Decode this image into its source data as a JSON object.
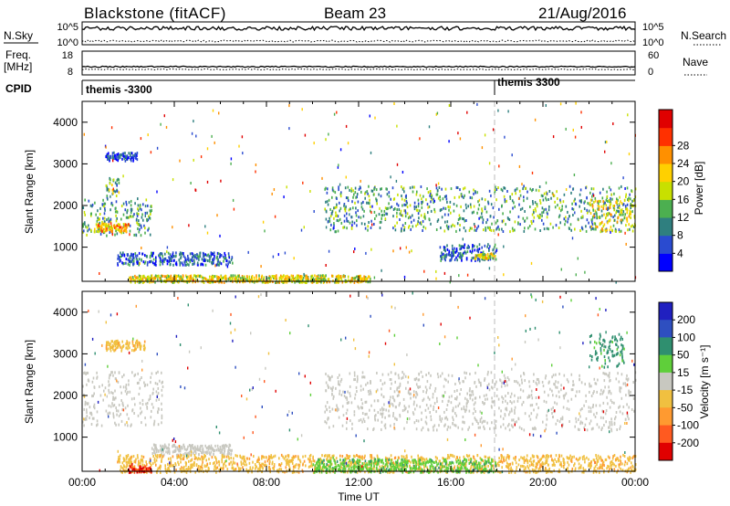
{
  "header": {
    "station": "Blackstone (fitACF)",
    "beam": "Beam 23",
    "date": "21/Aug/2016"
  },
  "status_panels": {
    "nsky_label": "N.Sky",
    "nsky_ticks": [
      "10^5",
      "10^0"
    ],
    "nsearch_label": "N.Search",
    "nsearch_ticks": [
      "10^5",
      "10^0"
    ],
    "freq_label": "Freq.",
    "freq_unit": "[MHz]",
    "freq_ticks": [
      "18",
      "8"
    ],
    "nave_label": "Nave",
    "nave_ticks": [
      "60",
      "0"
    ],
    "cpid_label": "CPID",
    "cpid_segments": [
      {
        "label": "themis -3300",
        "start_hour": 0
      },
      {
        "label": "themis 3300",
        "start_hour": 18
      }
    ]
  },
  "chart_data": [
    {
      "type": "heatmap",
      "name": "power",
      "ylabel": "Slant Range [km]",
      "xlabel": "",
      "ylim": [
        180,
        4500
      ],
      "yticks": [
        "1000",
        "2000",
        "3000",
        "4000"
      ],
      "xticks": [],
      "colorbar_label": "Power [dB]",
      "colorbar_ticks": [
        "4",
        "8",
        "12",
        "16",
        "20",
        "24",
        "28"
      ],
      "colorbar_colors": [
        "#0000ff",
        "#2a4bd0",
        "#2f7f7f",
        "#4caf50",
        "#c8e000",
        "#ffd000",
        "#ff9000",
        "#ff3000",
        "#e00000"
      ],
      "features": [
        {
          "hours": [
            0.0,
            3.0
          ],
          "range_km": [
            1300,
            2200
          ],
          "level_db": 12
        },
        {
          "hours": [
            0.5,
            2.0
          ],
          "range_km": [
            1400,
            1600
          ],
          "level_db": 24
        },
        {
          "hours": [
            1.0,
            2.4
          ],
          "range_km": [
            3100,
            3300
          ],
          "level_db": 6
        },
        {
          "hours": [
            1.0,
            1.6
          ],
          "range_km": [
            2200,
            2700
          ],
          "level_db": 14
        },
        {
          "hours": [
            1.5,
            6.5
          ],
          "range_km": [
            600,
            900
          ],
          "level_db": 8
        },
        {
          "hours": [
            2.0,
            12.5
          ],
          "range_km": [
            180,
            350
          ],
          "level_db": 20
        },
        {
          "hours": [
            10.5,
            24.0
          ],
          "range_km": [
            1400,
            2500
          ],
          "level_db": 12
        },
        {
          "hours": [
            15.5,
            18.0
          ],
          "range_km": [
            700,
            1100
          ],
          "level_db": 8
        },
        {
          "hours": [
            17.0,
            17.9
          ],
          "range_km": [
            750,
            880
          ],
          "level_db": 20
        },
        {
          "hours": [
            22.0,
            24.0
          ],
          "range_km": [
            1400,
            2200
          ],
          "level_db": 20
        }
      ]
    },
    {
      "type": "heatmap",
      "name": "velocity",
      "ylabel": "Slant Range [km]",
      "xlabel": "Time UT",
      "ylim": [
        180,
        4500
      ],
      "yticks": [
        "1000",
        "2000",
        "3000",
        "4000"
      ],
      "xticks": [
        "00:00",
        "04:00",
        "08:00",
        "12:00",
        "16:00",
        "20:00",
        "00:00"
      ],
      "colorbar_label": "Velocity [m s⁻¹]",
      "colorbar_ticks": [
        "200",
        "100",
        "50",
        "15",
        "-15",
        "-50",
        "-100",
        "-200"
      ],
      "colorbar_colors": [
        "#2020c0",
        "#2e4fc0",
        "#2f8f6f",
        "#5fcf3a",
        "#c8c8c0",
        "#f0c040",
        "#ff9a30",
        "#ff5a20",
        "#e00000"
      ],
      "features": [
        {
          "hours": [
            0.0,
            3.5
          ],
          "range_km": [
            1300,
            2600
          ],
          "velocity": 0
        },
        {
          "hours": [
            1.0,
            2.7
          ],
          "range_km": [
            3100,
            3350
          ],
          "velocity": -40
        },
        {
          "hours": [
            10.5,
            24.0
          ],
          "range_km": [
            1200,
            2600
          ],
          "velocity": 0
        },
        {
          "hours": [
            3.0,
            6.5
          ],
          "range_km": [
            600,
            850
          ],
          "velocity": 0
        },
        {
          "hours": [
            1.5,
            24.0
          ],
          "range_km": [
            180,
            600
          ],
          "velocity": -40
        },
        {
          "hours": [
            10.0,
            18.0
          ],
          "range_km": [
            180,
            500
          ],
          "velocity": 40
        },
        {
          "hours": [
            2.0,
            3.0
          ],
          "range_km": [
            180,
            330
          ],
          "velocity": -200
        },
        {
          "hours": [
            22.0,
            23.5
          ],
          "range_km": [
            2700,
            3500
          ],
          "velocity": 60
        }
      ]
    }
  ]
}
